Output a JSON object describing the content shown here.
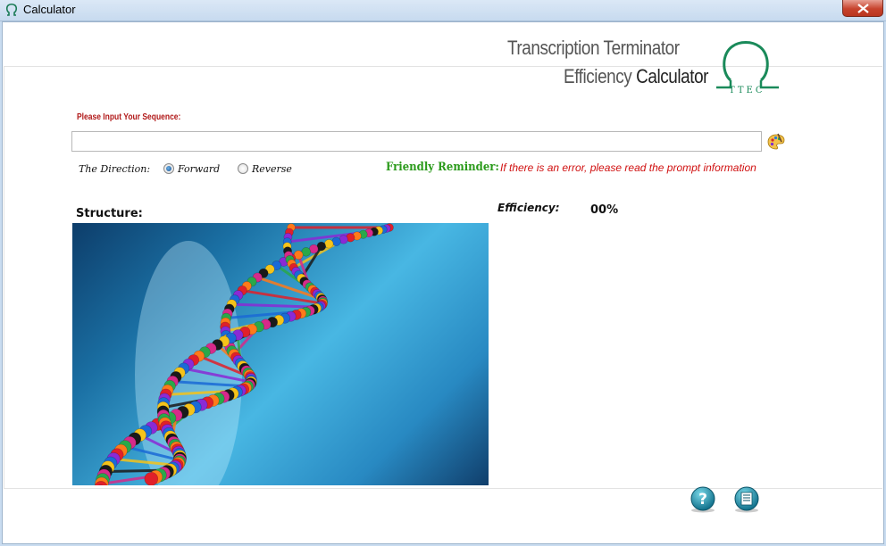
{
  "window": {
    "title": "Calculator"
  },
  "logo": {
    "line1": "Transcription Terminator",
    "line2_a": "Efficiency ",
    "line2_b": "Calculator",
    "badge": "TTEC"
  },
  "sequence": {
    "label": "Please Input Your Sequence:",
    "value": "",
    "placeholder": ""
  },
  "direction": {
    "label": "The Direction:",
    "options": [
      {
        "label": "Forward",
        "checked": true
      },
      {
        "label": "Reverse",
        "checked": false
      }
    ]
  },
  "reminder": {
    "label": "Friendly Reminder:",
    "text": "If there is an error, please read the prompt information"
  },
  "structure": {
    "label": "Structure:"
  },
  "efficiency": {
    "label": "Efficiency:",
    "value": "00%"
  },
  "colors": {
    "accent_red": "#d01010",
    "accent_green": "#2a9a1a",
    "logo_green": "#1a8a5a"
  }
}
